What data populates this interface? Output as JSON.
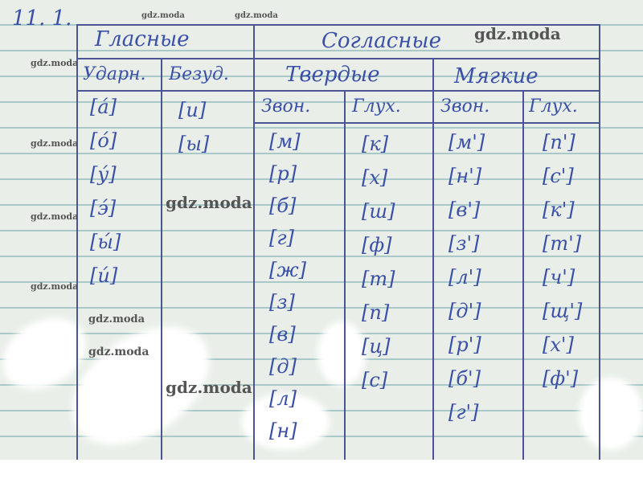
{
  "exercise_number": "11. 1.",
  "headers": {
    "vowels": "Гласные",
    "consonants": "Согласные",
    "stressed": "Ударн.",
    "unstressed": "Безуд.",
    "hard": "Твердые",
    "soft": "Мягкие",
    "hard_voiced": "Звон.",
    "hard_voiceless": "Глух.",
    "soft_voiced": "Звон.",
    "soft_voiceless": "Глух."
  },
  "columns": {
    "stressed": [
      "[а́]",
      "[о́]",
      "[у́]",
      "[э́]",
      "[ы́]",
      "[и́]"
    ],
    "unstressed": [
      "[и]",
      "[ы]"
    ],
    "hard_voiced": [
      "[м]",
      "[р]",
      "[б]",
      "[г]",
      "[ж]",
      "[з]",
      "[в]",
      "[д]",
      "[л]",
      "[н]"
    ],
    "hard_voiceless": [
      "[к]",
      "[х]",
      "[ш]",
      "[ф]",
      "[т]",
      "[п]",
      "[ц]",
      "[с]"
    ],
    "soft_voiced": [
      "[м']",
      "[н']",
      "[в']",
      "[з']",
      "[л']",
      "[д']",
      "[р']",
      "[б']",
      "[г']"
    ],
    "soft_voiceless": [
      "[п']",
      "[с']",
      "[к']",
      "[т']",
      "[ч']",
      "[щ']",
      "[х']",
      "[ф']"
    ]
  },
  "watermark": "gdz.moda",
  "ink_color": "#3a4fa8"
}
